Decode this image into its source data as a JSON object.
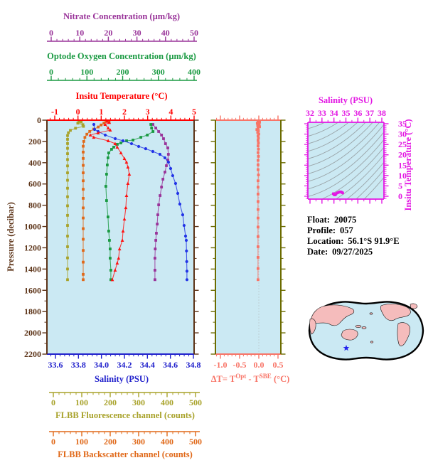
{
  "info": {
    "lines": [
      {
        "label": "Float:",
        "value": "20075"
      },
      {
        "label": "Profile:",
        "value": "057"
      },
      {
        "label": "Location:",
        "value": "56.1°S 91.9°E"
      },
      {
        "label": "Date:",
        "value": "09/27/2025"
      }
    ]
  },
  "colors": {
    "plot_bg": "#CBE9F3",
    "nitrate": "#993399",
    "oxygen": "#1A9A42",
    "temperature": "#FF0000",
    "pressure_frame": "#5C3317",
    "salinity": "#2222CC",
    "delta_t": "#F87467",
    "delta_frame_olive": "#6B6B00",
    "fluorescence": "#A8A22A",
    "backscatter": "#E06818",
    "ts_magenta": "#E318E3",
    "contour": "#9AA4A8",
    "map_land": "#F5BCBC",
    "map_ocean": "#CBE9F3",
    "star": "#2222EE",
    "info_text": "#000000"
  },
  "chart_data": [
    {
      "id": "profile-plot",
      "type": "line",
      "ylabel": "Pressure (decibar)",
      "ylim": [
        0,
        2200
      ],
      "yticks": [
        0,
        200,
        400,
        600,
        800,
        1000,
        1200,
        1400,
        1600,
        1800,
        2000,
        2200
      ],
      "y_minor_step": 100,
      "x_axes": {
        "nitrate": {
          "title": "Nitrate Concentration (µm/kg)",
          "range": [
            0,
            50
          ],
          "ticks": [
            0,
            10,
            20,
            30,
            40,
            50
          ],
          "minor_step": 2
        },
        "oxygen": {
          "title": "Optode Oxygen Concentration (µm/kg)",
          "range": [
            0,
            400
          ],
          "ticks": [
            0,
            100,
            200,
            300,
            400
          ],
          "minor_step": 20
        },
        "temperature": {
          "title": "Insitu Temperature (°C)",
          "range": [
            -1,
            5
          ],
          "ticks": [
            -1,
            0,
            1,
            2,
            3,
            4,
            5
          ],
          "minor_step": 0.2
        },
        "salinity": {
          "title": "Salinity (PSU)",
          "range": [
            33.6,
            34.8
          ],
          "ticks": [
            "33.6",
            "33.8",
            "34.0",
            "34.2",
            "34.4",
            "34.6",
            "34.8"
          ],
          "minor_step": 0.04
        },
        "fluorescence": {
          "title": "FLBB Fluorescence channel (counts)",
          "range": [
            0,
            500
          ],
          "ticks": [
            0,
            100,
            200,
            300,
            400,
            500
          ],
          "minor_step": 20
        },
        "backscatter": {
          "title": "FLBB Backscatter channel (counts)",
          "range": [
            0,
            500
          ],
          "ticks": [
            0,
            100,
            200,
            300,
            400,
            500
          ],
          "minor_step": 20
        }
      },
      "series": [
        {
          "name": "fluorescence",
          "marker": "square",
          "points": [
            [
              90,
              8
            ],
            [
              98,
              16
            ],
            [
              86,
              28
            ],
            [
              104,
              42
            ],
            [
              106,
              58
            ],
            [
              78,
              76
            ],
            [
              60,
              96
            ],
            [
              53,
              118
            ],
            [
              50,
              145
            ],
            [
              50,
              180
            ],
            [
              50,
              220
            ],
            [
              50,
              265
            ],
            [
              50,
              315
            ],
            [
              50,
              370
            ],
            [
              50,
              430
            ],
            [
              50,
              495
            ],
            [
              50,
              565
            ],
            [
              50,
              640
            ],
            [
              50,
              720
            ],
            [
              50,
              805
            ],
            [
              50,
              895
            ],
            [
              50,
              990
            ],
            [
              50,
              1090
            ],
            [
              50,
              1190
            ],
            [
              50,
              1295
            ],
            [
              50,
              1400
            ],
            [
              50,
              1500
            ]
          ]
        },
        {
          "name": "backscatter",
          "marker": "square",
          "points": [
            [
              185,
              5
            ],
            [
              196,
              14
            ],
            [
              178,
              28
            ],
            [
              168,
              45
            ],
            [
              158,
              64
            ],
            [
              142,
              84
            ],
            [
              128,
              106
            ],
            [
              118,
              132
            ],
            [
              111,
              162
            ],
            [
              107,
              200
            ],
            [
              105,
              245
            ],
            [
              105,
              300
            ],
            [
              105,
              360
            ],
            [
              105,
              425
            ],
            [
              105,
              495
            ],
            [
              105,
              570
            ],
            [
              105,
              650
            ],
            [
              105,
              735
            ],
            [
              105,
              825
            ],
            [
              105,
              920
            ],
            [
              105,
              1020
            ],
            [
              105,
              1120
            ],
            [
              105,
              1225
            ],
            [
              105,
              1335
            ],
            [
              105,
              1450
            ],
            [
              105,
              1500
            ]
          ]
        },
        {
          "name": "nitrate",
          "marker": "square",
          "points": [
            [
              35.6,
              40
            ],
            [
              36.6,
              74
            ],
            [
              37.6,
              107
            ],
            [
              38.6,
              140
            ],
            [
              39.3,
              174
            ],
            [
              40.0,
              221
            ],
            [
              40.8,
              261
            ],
            [
              41.0,
              321
            ],
            [
              40.8,
              375
            ],
            [
              40.3,
              428
            ],
            [
              39.8,
              488
            ],
            [
              39.1,
              555
            ],
            [
              38.6,
              629
            ],
            [
              38.1,
              709
            ],
            [
              37.6,
              796
            ],
            [
              37.3,
              890
            ],
            [
              37.1,
              977
            ],
            [
              36.8,
              1063
            ],
            [
              36.6,
              1130
            ],
            [
              36.4,
              1211
            ],
            [
              36.3,
              1298
            ],
            [
              36.3,
              1411
            ],
            [
              36.3,
              1500
            ]
          ]
        },
        {
          "name": "oxygen",
          "marker": "square",
          "points": [
            [
              279,
              40
            ],
            [
              281,
              74
            ],
            [
              285,
              107
            ],
            [
              269,
              140
            ],
            [
              251,
              161
            ],
            [
              229,
              187
            ],
            [
              211,
              194
            ],
            [
              195,
              214
            ],
            [
              185,
              227
            ],
            [
              175,
              254
            ],
            [
              169,
              274
            ],
            [
              161,
              308
            ],
            [
              159,
              354
            ],
            [
              157,
              421
            ],
            [
              155,
              508
            ],
            [
              153,
              622
            ],
            [
              155,
              756
            ],
            [
              159,
              910
            ],
            [
              161,
              1043
            ],
            [
              163,
              1130
            ],
            [
              165,
              1211
            ],
            [
              165,
              1298
            ],
            [
              167,
              1411
            ],
            [
              167,
              1500
            ]
          ]
        },
        {
          "name": "salinity",
          "marker": "circle",
          "points": [
            [
              33.934,
              40
            ],
            [
              33.94,
              87
            ],
            [
              33.971,
              107
            ],
            [
              34.033,
              140
            ],
            [
              34.12,
              174
            ],
            [
              34.188,
              194
            ],
            [
              34.262,
              221
            ],
            [
              34.324,
              247
            ],
            [
              34.385,
              268
            ],
            [
              34.447,
              294
            ],
            [
              34.509,
              321
            ],
            [
              34.552,
              354
            ],
            [
              34.583,
              395
            ],
            [
              34.602,
              455
            ],
            [
              34.62,
              522
            ],
            [
              34.645,
              595
            ],
            [
              34.664,
              689
            ],
            [
              34.682,
              789
            ],
            [
              34.707,
              890
            ],
            [
              34.719,
              990
            ],
            [
              34.732,
              1090
            ],
            [
              34.738,
              1130
            ],
            [
              34.74,
              1230
            ],
            [
              34.742,
              1330
            ],
            [
              34.744,
              1420
            ],
            [
              34.744,
              1500
            ]
          ]
        },
        {
          "name": "temperature",
          "marker": "triangle",
          "points": [
            [
              1.25,
              10
            ],
            [
              1.35,
              22
            ],
            [
              1.17,
              40
            ],
            [
              1.3,
              74
            ],
            [
              1.39,
              94
            ],
            [
              0.87,
              120
            ],
            [
              0.53,
              140
            ],
            [
              0.68,
              161
            ],
            [
              1.3,
              194
            ],
            [
              1.6,
              221
            ],
            [
              1.69,
              254
            ],
            [
              1.85,
              308
            ],
            [
              2.0,
              361
            ],
            [
              2.09,
              395
            ],
            [
              2.15,
              441
            ],
            [
              2.21,
              508
            ],
            [
              2.15,
              595
            ],
            [
              2.09,
              709
            ],
            [
              2.06,
              823
            ],
            [
              2.0,
              930
            ],
            [
              1.94,
              1043
            ],
            [
              1.91,
              1130
            ],
            [
              1.79,
              1211
            ],
            [
              1.75,
              1298
            ],
            [
              1.69,
              1344
            ],
            [
              1.6,
              1411
            ],
            [
              1.48,
              1500
            ]
          ]
        }
      ]
    },
    {
      "id": "temp-difference-plot",
      "type": "line",
      "title_parts": [
        "ΔT= T",
        "Opt",
        " - T",
        "SBE",
        " (°C)"
      ],
      "xrange": [
        -1.0,
        0.5
      ],
      "xticks": [
        "-1.0",
        "-0.5",
        "0.0",
        "0.5"
      ],
      "minor_step": 0.1,
      "marker": "square",
      "points": [
        [
          -0.02,
          8
        ],
        [
          0.02,
          18
        ],
        [
          -0.04,
          28
        ],
        [
          0.01,
          38
        ],
        [
          -0.03,
          50
        ],
        [
          0.02,
          62
        ],
        [
          -0.02,
          75
        ],
        [
          -0.05,
          88
        ],
        [
          -0.01,
          100
        ],
        [
          -0.03,
          115
        ],
        [
          0.0,
          130
        ],
        [
          -0.02,
          148
        ],
        [
          -0.01,
          168
        ],
        [
          -0.02,
          190
        ],
        [
          -0.01,
          215
        ],
        [
          -0.02,
          242
        ],
        [
          -0.01,
          272
        ],
        [
          -0.02,
          305
        ],
        [
          -0.01,
          340
        ],
        [
          -0.02,
          378
        ],
        [
          -0.02,
          420
        ],
        [
          -0.02,
          465
        ],
        [
          -0.01,
          515
        ],
        [
          -0.02,
          570
        ],
        [
          -0.02,
          630
        ],
        [
          -0.02,
          695
        ],
        [
          -0.02,
          765
        ],
        [
          -0.02,
          840
        ],
        [
          -0.02,
          920
        ],
        [
          -0.02,
          1005
        ],
        [
          -0.02,
          1095
        ],
        [
          -0.02,
          1190
        ],
        [
          -0.02,
          1290
        ],
        [
          -0.02,
          1395
        ],
        [
          -0.02,
          1500
        ]
      ]
    },
    {
      "id": "ts-diagram",
      "type": "scatter",
      "title": "Salinity (PSU)",
      "ylabel_right": "Insitu Temperature (°C)",
      "xrange": [
        32,
        38
      ],
      "xticks": [
        32,
        33,
        34,
        35,
        36,
        37,
        38
      ],
      "x_minor_step": 0.5,
      "yrange": [
        0,
        35
      ],
      "yticks": [
        0,
        5,
        10,
        15,
        20,
        25,
        30,
        35
      ],
      "y_minor_step": 1,
      "isopycnal_contours": 15,
      "points": [
        [
          33.934,
          1.17
        ],
        [
          33.95,
          1.28
        ],
        [
          33.971,
          1.3
        ],
        [
          34.0,
          0.95
        ],
        [
          34.033,
          0.6
        ],
        [
          34.06,
          0.55
        ],
        [
          34.09,
          0.62
        ],
        [
          34.12,
          0.68
        ],
        [
          34.15,
          0.9
        ],
        [
          34.188,
          1.3
        ],
        [
          34.22,
          1.45
        ],
        [
          34.262,
          1.6
        ],
        [
          34.29,
          1.65
        ],
        [
          34.324,
          1.69
        ],
        [
          34.35,
          1.78
        ],
        [
          34.385,
          1.85
        ],
        [
          34.42,
          1.95
        ],
        [
          34.447,
          2.0
        ],
        [
          34.48,
          2.09
        ],
        [
          34.509,
          2.15
        ],
        [
          34.53,
          2.21
        ],
        [
          34.552,
          2.18
        ],
        [
          34.583,
          2.12
        ],
        [
          34.602,
          2.06
        ],
        [
          34.62,
          2.0
        ],
        [
          34.645,
          1.94
        ],
        [
          34.664,
          1.91
        ],
        [
          34.682,
          1.79
        ],
        [
          34.707,
          1.75
        ],
        [
          34.719,
          1.69
        ],
        [
          34.732,
          1.6
        ],
        [
          34.744,
          1.48
        ]
      ]
    }
  ]
}
